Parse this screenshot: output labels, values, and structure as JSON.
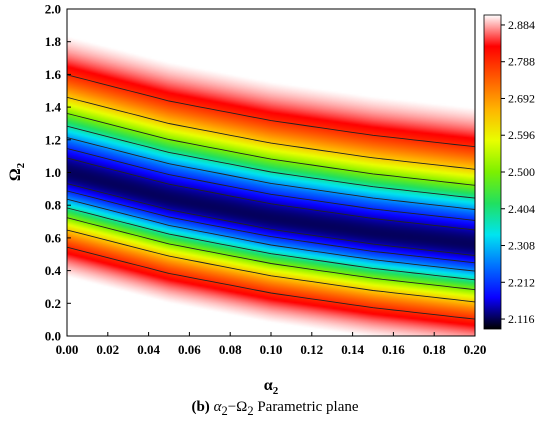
{
  "caption": {
    "prefix": "(b)",
    "math_left": "α",
    "math_left_sub": "2",
    "dash": "−",
    "math_right": "Ω",
    "math_right_sub": "2",
    "text": "Parametric plane"
  },
  "chart_data": {
    "type": "heatmap",
    "xlabel": "α",
    "xlabel_sub": "2",
    "ylabel": "Ω",
    "ylabel_sub": "2",
    "xlim": [
      0.0,
      0.2
    ],
    "ylim": [
      0.0,
      2.0
    ],
    "x_ticks": [
      "0.00",
      "0.02",
      "0.04",
      "0.06",
      "0.08",
      "0.10",
      "0.12",
      "0.14",
      "0.16",
      "0.18",
      "0.20"
    ],
    "y_ticks": [
      "0.0",
      "0.2",
      "0.4",
      "0.6",
      "0.8",
      "1.0",
      "1.2",
      "1.4",
      "1.6",
      "1.8",
      "2.0"
    ],
    "colorbar": {
      "ticks": [
        "2.884",
        "2.788",
        "2.692",
        "2.596",
        "2.500",
        "2.404",
        "2.308",
        "2.212",
        "2.116"
      ],
      "range": [
        2.09,
        2.91
      ],
      "colors": [
        "#000000",
        "#0a00ff",
        "#0070ff",
        "#00e4f0",
        "#20e060",
        "#7cf000",
        "#e8ff00",
        "#ffb400",
        "#ff5a00",
        "#ff0000",
        "#ffffff"
      ]
    },
    "valley": {
      "description_points": [
        {
          "x": 0.0,
          "y": 1.0
        },
        {
          "x": 0.05,
          "y": 0.84
        },
        {
          "x": 0.1,
          "y": 0.72
        },
        {
          "x": 0.15,
          "y": 0.63
        },
        {
          "x": 0.2,
          "y": 0.56
        }
      ],
      "min_value": 2.12
    },
    "contour_levels": [
      2.15,
      2.2,
      2.28,
      2.38,
      2.5,
      2.64,
      2.79
    ]
  }
}
